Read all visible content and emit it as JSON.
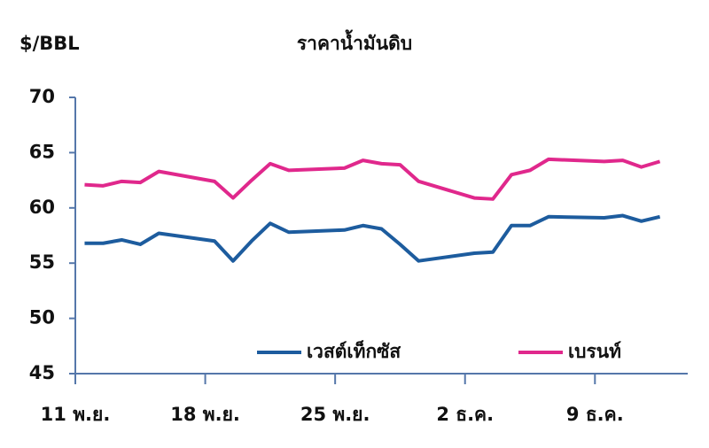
{
  "chart_data": {
    "type": "line",
    "title": "ราคาน้ำมันดิบ",
    "y_label": "$/BBL",
    "x": [
      0.5,
      1.5,
      2.5,
      3.5,
      4.5,
      7.5,
      8.5,
      9.5,
      10.5,
      11.5,
      14.5,
      15.5,
      16.5,
      17.5,
      18.5,
      21.5,
      22.5,
      23.5,
      24.5,
      25.5,
      28.5,
      29.5,
      30.5,
      31.5
    ],
    "series": [
      {
        "name": "เวสต์เท็กซัส",
        "color": "#1d5c9e",
        "values": [
          56.8,
          56.8,
          57.1,
          56.7,
          57.7,
          57.0,
          55.2,
          57.0,
          58.6,
          57.8,
          58.0,
          58.4,
          58.1,
          56.7,
          55.2,
          55.9,
          56.0,
          58.4,
          58.4,
          59.2,
          59.1,
          59.3,
          58.8,
          59.2
        ]
      },
      {
        "name": "เบรนท์",
        "color": "#e0288c",
        "values": [
          62.1,
          62.0,
          62.4,
          62.3,
          63.3,
          62.4,
          60.9,
          62.5,
          64.0,
          63.4,
          63.6,
          64.3,
          64.0,
          63.9,
          62.4,
          60.9,
          60.8,
          63.0,
          63.4,
          64.4,
          64.2,
          64.3,
          63.7,
          64.2
        ]
      }
    ],
    "xlim": [
      0,
      33
    ],
    "xticks": [
      {
        "value": 0,
        "label": "11 พ.ย."
      },
      {
        "value": 7,
        "label": "18 พ.ย."
      },
      {
        "value": 14,
        "label": "25 พ.ย."
      },
      {
        "value": 21,
        "label": "2 ธ.ค."
      },
      {
        "value": 28,
        "label": "9 ธ.ค."
      }
    ],
    "ylim": [
      45,
      70
    ],
    "yticks": [
      45,
      50,
      55,
      60,
      65,
      70
    ],
    "grid": false,
    "legend": "lower right"
  }
}
